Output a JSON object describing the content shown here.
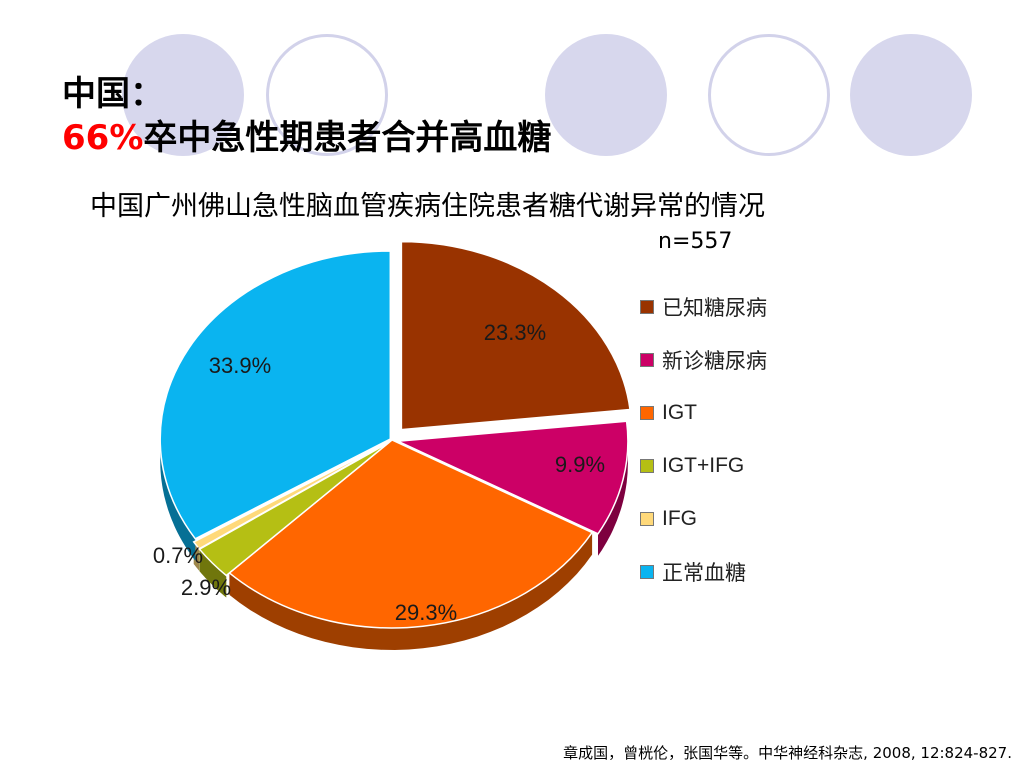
{
  "heading": {
    "line1": "中国：",
    "highlight": "66%",
    "line2_rest": "卒中急性期患者合并高血糖"
  },
  "chart_data": {
    "type": "pie",
    "title": "中国广州佛山急性脑血管疾病住院患者糖代谢异常的情况",
    "sample_size": "n=557",
    "legend_position": "right",
    "slices": [
      {
        "label": "已知糖尿病",
        "value": 23.3,
        "display": "23.3%",
        "color": "#993300"
      },
      {
        "label": "新诊糖尿病",
        "value": 9.9,
        "display": "9.9%",
        "color": "#cc0066"
      },
      {
        "label": "IGT",
        "value": 29.3,
        "display": "29.3%",
        "color": "#ff6600"
      },
      {
        "label": "IGT+IFG",
        "value": 2.9,
        "display": "2.9%",
        "color": "#b5bf14"
      },
      {
        "label": "IFG",
        "value": 0.7,
        "display": "0.7%",
        "color": "#ffd97a"
      },
      {
        "label": "正常血糖",
        "value": 33.9,
        "display": "33.9%",
        "color": "#0ab4f0"
      }
    ]
  },
  "citation": "章成国，曾桄伦，张国华等。中华神经科杂志, 2008, 12:824-827."
}
